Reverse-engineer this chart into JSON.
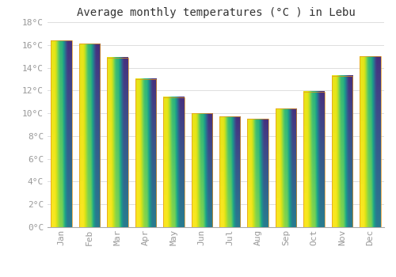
{
  "title": "Average monthly temperatures (°C ) in Lebu",
  "months": [
    "Jan",
    "Feb",
    "Mar",
    "Apr",
    "May",
    "Jun",
    "Jul",
    "Aug",
    "Sep",
    "Oct",
    "Nov",
    "Dec"
  ],
  "values": [
    16.4,
    16.1,
    14.9,
    13.0,
    11.4,
    10.0,
    9.7,
    9.5,
    10.4,
    11.9,
    13.3,
    15.0
  ],
  "bar_color_top": "#F5A623",
  "bar_color_bottom": "#FDD06A",
  "background_color": "#FFFFFF",
  "grid_color": "#DDDDDD",
  "text_color": "#999999",
  "ylim": [
    0,
    18
  ],
  "ytick_step": 2,
  "title_fontsize": 10,
  "tick_fontsize": 8
}
